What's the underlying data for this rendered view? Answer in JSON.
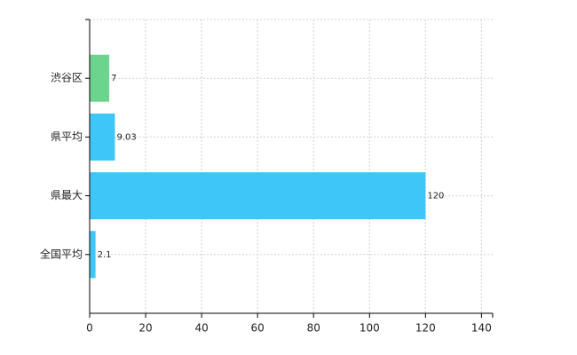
{
  "chart_data": {
    "type": "bar",
    "orientation": "horizontal",
    "categories": [
      "渋谷区",
      "県平均",
      "県最大",
      "全国平均"
    ],
    "values": [
      7,
      9.03,
      120,
      2.1
    ],
    "colors": [
      "#6dd48e",
      "#3ec6f9",
      "#3ec6f9",
      "#3ec6f9"
    ],
    "xlim": [
      0,
      144
    ],
    "xticks": [
      0,
      20,
      40,
      60,
      80,
      100,
      120,
      140
    ],
    "grid": true
  }
}
